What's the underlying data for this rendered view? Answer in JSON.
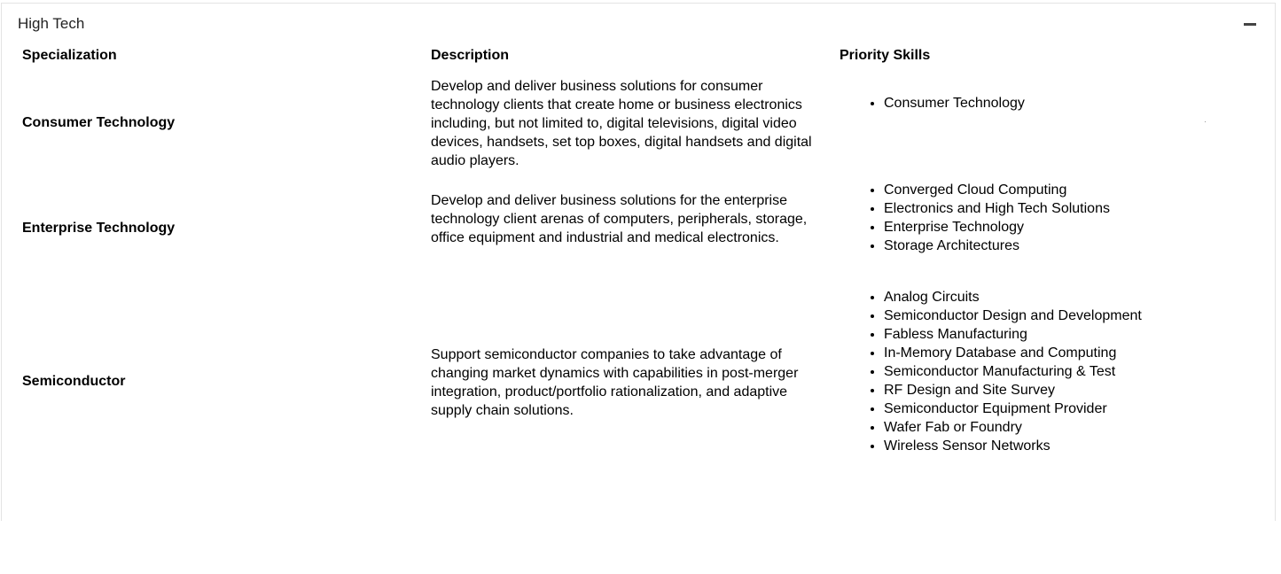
{
  "section": {
    "title": "High Tech"
  },
  "table": {
    "headers": {
      "specialization": "Specialization",
      "description": "Description",
      "priority_skills": "Priority Skills"
    },
    "rows": [
      {
        "specialization": "Consumer Technology",
        "description": "Develop and deliver business solutions for consumer technology clients that create home or business electronics including, but not limited to, digital televisions, digital video devices, handsets, set top boxes, digital handsets and digital audio players.",
        "skills": [
          "Consumer Technology"
        ]
      },
      {
        "specialization": "Enterprise Technology",
        "description": "Develop and deliver business solutions for the enterprise technology client arenas of computers, peripherals, storage, office equipment and industrial and medical electronics.",
        "skills": [
          "Converged Cloud Computing",
          "Electronics and High Tech Solutions",
          "Enterprise Technology",
          "Storage Architectures"
        ]
      },
      {
        "specialization": "Semiconductor",
        "description": "Support semiconductor companies to take advantage of changing market dynamics with capabilities in post-merger integration, product/portfolio rationalization, and adaptive supply chain solutions.",
        "skills": [
          "Analog Circuits",
          "Semiconductor Design and Development",
          "Fabless Manufacturing",
          "In-Memory Database and Computing",
          "Semiconductor Manufacturing & Test",
          "RF Design and Site Survey",
          "Semiconductor Equipment Provider",
          "Wafer Fab or Foundry",
          "Wireless Sensor Networks"
        ]
      }
    ]
  }
}
